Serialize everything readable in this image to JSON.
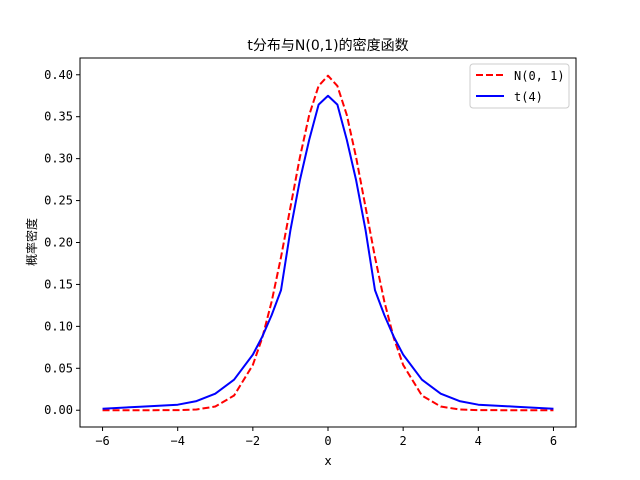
{
  "chart_data": {
    "type": "line",
    "title": "t分布与N(0,1)的密度函数",
    "xlabel": "x",
    "ylabel": "概率密度",
    "xlim": [
      -6.6,
      6.6
    ],
    "ylim": [
      -0.02,
      0.42
    ],
    "x_ticks": [
      -6,
      -4,
      -2,
      0,
      2,
      4,
      6
    ],
    "x_tick_labels": [
      "−6",
      "−4",
      "−2",
      "0",
      "2",
      "4",
      "6"
    ],
    "y_ticks": [
      0.0,
      0.05,
      0.1,
      0.15,
      0.2,
      0.25,
      0.3,
      0.35,
      0.4
    ],
    "y_tick_labels": [
      "0.00",
      "0.05",
      "0.10",
      "0.15",
      "0.20",
      "0.25",
      "0.30",
      "0.35",
      "0.40"
    ],
    "grid": false,
    "legend_position": "top-right",
    "series": [
      {
        "name": "N(0, 1)",
        "color": "#ff0000",
        "dash": true,
        "x": [
          -6,
          -5,
          -4,
          -3.5,
          -3,
          -2.5,
          -2,
          -1.75,
          -1.5,
          -1.25,
          -1,
          -0.75,
          -0.5,
          -0.25,
          0,
          0.25,
          0.5,
          0.75,
          1,
          1.25,
          1.5,
          1.75,
          2,
          2.5,
          3,
          3.5,
          4,
          5,
          6
        ],
        "values": [
          0.0,
          0.0,
          0.0001,
          0.0009,
          0.0044,
          0.0175,
          0.054,
          0.0863,
          0.1295,
          0.1826,
          0.242,
          0.3011,
          0.3521,
          0.3867,
          0.3989,
          0.3867,
          0.3521,
          0.3011,
          0.242,
          0.1826,
          0.1295,
          0.0863,
          0.054,
          0.0175,
          0.0044,
          0.0009,
          0.0001,
          0.0,
          0.0
        ]
      },
      {
        "name": "t(4)",
        "color": "#0000ff",
        "dash": false,
        "x": [
          -6,
          -5,
          -4,
          -3.5,
          -3,
          -2.5,
          -2,
          -1.75,
          -1.5,
          -1.25,
          -1,
          -0.75,
          -0.5,
          -0.25,
          0,
          0.25,
          0.5,
          0.75,
          1,
          1.25,
          1.5,
          1.75,
          2,
          2.5,
          3,
          3.5,
          4,
          5,
          6
        ],
        "values": [
          0.0018,
          0.0042,
          0.0066,
          0.0109,
          0.0197,
          0.0364,
          0.0663,
          0.0876,
          0.1134,
          0.1432,
          0.2147,
          0.2739,
          0.3225,
          0.3644,
          0.375,
          0.3644,
          0.3225,
          0.2739,
          0.2147,
          0.1432,
          0.1134,
          0.0876,
          0.0663,
          0.0364,
          0.0197,
          0.0109,
          0.0066,
          0.0042,
          0.0018
        ]
      }
    ]
  }
}
